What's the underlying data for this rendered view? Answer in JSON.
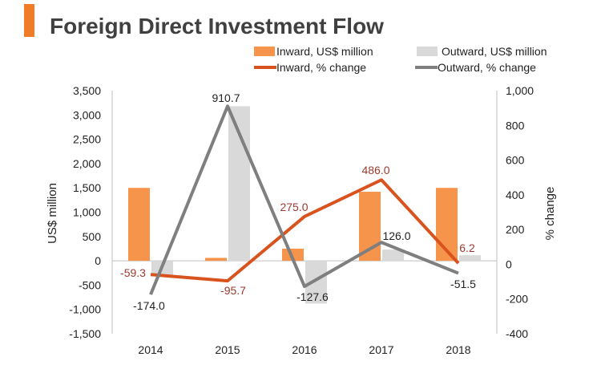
{
  "chart_data": {
    "type": "bar",
    "title": "Foreign Direct Investment Flow",
    "categories": [
      "2014",
      "2015",
      "2016",
      "2017",
      "2018"
    ],
    "y_left": {
      "label": "US$ million",
      "range": [
        -1500,
        3500
      ],
      "ticks": [
        -1500,
        -1000,
        -500,
        0,
        500,
        1000,
        1500,
        2000,
        2500,
        3000,
        3500
      ],
      "tick_labels": [
        "-1,500",
        "-1,000",
        "-500",
        "0",
        "500",
        "1,000",
        "1,500",
        "2,000",
        "2,500",
        "3,000",
        "3,500"
      ]
    },
    "y_right": {
      "label": "% change",
      "range": [
        -400,
        1000
      ],
      "ticks": [
        -400,
        -200,
        0,
        200,
        400,
        600,
        800,
        1000
      ],
      "tick_labels": [
        "-400",
        "-200",
        "0",
        "200",
        "400",
        "600",
        "800",
        "1,000"
      ]
    },
    "bar_series": [
      {
        "name": "Inward, US$ million",
        "color": "#F5944A",
        "values": [
          1500,
          60,
          250,
          1420,
          1500
        ]
      },
      {
        "name": "Outward, US$ million",
        "color": "#D9D9D9",
        "values": [
          -300,
          3180,
          -880,
          230,
          115
        ]
      }
    ],
    "line_series": [
      {
        "name": "Inward, % change",
        "color": "#D9531E",
        "values": [
          null,
          -95.7,
          275.0,
          486.0,
          6.2
        ],
        "labels": [
          "-59.3",
          "-95.7",
          "275.0",
          "486.0",
          "6.2"
        ],
        "label_color": "#9B3A2E"
      },
      {
        "name": "Outward, % change",
        "color": "#7F7F7F",
        "values": [
          -174.0,
          910.7,
          -127.6,
          126.0,
          -51.5
        ],
        "labels": [
          "-174.0",
          "910.7",
          "-127.6",
          "126.0",
          "-51.5"
        ],
        "label_color": "#222222"
      }
    ],
    "line_start_values": [
      -59.3,
      -174.0
    ],
    "legend_position": "top-right",
    "grid": false
  },
  "accent_color": "#F07C28"
}
